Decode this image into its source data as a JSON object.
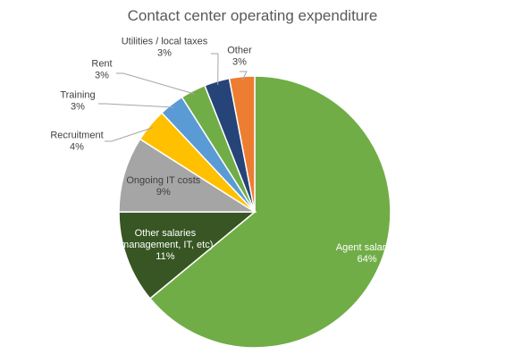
{
  "chart_data": {
    "type": "pie",
    "title": "Contact center operating expenditure",
    "slices": [
      {
        "label": "Agent salaries",
        "label_lines": [
          "Agent salaries"
        ],
        "value": 64,
        "value_label": "64%",
        "color": "#70AD47",
        "label_pos": "inside",
        "text_color": "#ffffff"
      },
      {
        "label": "Other salaries (management, IT, etc)",
        "label_lines": [
          "Other salaries",
          "(management, IT, etc)"
        ],
        "value": 11,
        "value_label": "11%",
        "color": "#375623",
        "label_pos": "inside",
        "text_color": "#ffffff"
      },
      {
        "label": "Ongoing IT costs",
        "label_lines": [
          "Ongoing IT costs"
        ],
        "value": 9,
        "value_label": "9%",
        "color": "#A5A5A5",
        "label_pos": "inside",
        "text_color": "#404040"
      },
      {
        "label": "Recruitment",
        "label_lines": [
          "Recruitment"
        ],
        "value": 4,
        "value_label": "4%",
        "color": "#FFC000",
        "label_pos": "outside",
        "text_color": "#404040"
      },
      {
        "label": "Training",
        "label_lines": [
          "Training"
        ],
        "value": 3,
        "value_label": "3%",
        "color": "#5B9BD5",
        "label_pos": "outside",
        "text_color": "#404040"
      },
      {
        "label": "Rent",
        "label_lines": [
          "Rent"
        ],
        "value": 3,
        "value_label": "3%",
        "color": "#70AD47",
        "label_pos": "outside",
        "text_color": "#404040"
      },
      {
        "label": "Utilities / local taxes",
        "label_lines": [
          "Utilities / local taxes"
        ],
        "value": 3,
        "value_label": "3%",
        "color": "#264478",
        "label_pos": "outside",
        "text_color": "#404040"
      },
      {
        "label": "Other",
        "label_lines": [
          "Other"
        ],
        "value": 3,
        "value_label": "3%",
        "color": "#ED7D31",
        "label_pos": "outside",
        "text_color": "#404040"
      }
    ],
    "start_angle": "12 o'clock",
    "direction": "clockwise",
    "legend": "none"
  }
}
